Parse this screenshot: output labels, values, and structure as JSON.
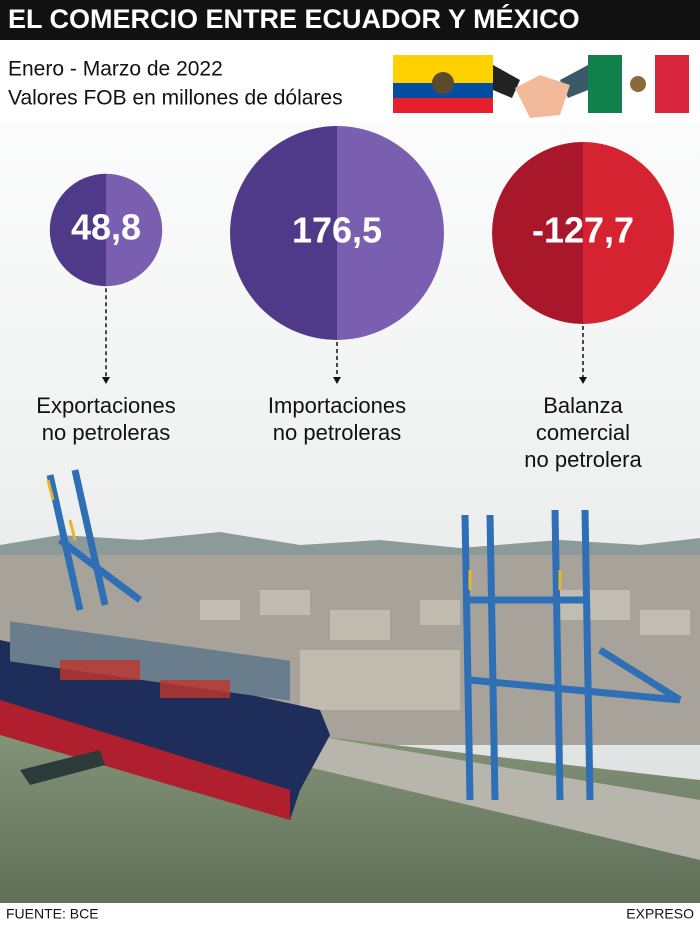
{
  "chart_data": {
    "type": "bubble",
    "title": "EL COMERCIO ENTRE ECUADOR Y MÉXICO",
    "subtitle": [
      "Enero - Marzo de 2022",
      "Valores FOB en millones de dólares"
    ],
    "categories": [
      [
        "Exportaciones",
        "no petroleras"
      ],
      [
        "Importaciones",
        "no petroleras"
      ],
      [
        "Balanza",
        "comercial",
        "no petrolera"
      ]
    ],
    "values": [
      48.8,
      176.5,
      -127.7
    ],
    "value_labels": [
      "48,8",
      "176,5",
      "-127,7"
    ],
    "colors": [
      [
        "#4f3a8a",
        "#7a5fb0"
      ],
      [
        "#4f3a8a",
        "#7a5fb0"
      ],
      [
        "#a8172a",
        "#d52331"
      ]
    ],
    "source": "FUENTE: BCE",
    "credit": "EXPRESO"
  }
}
